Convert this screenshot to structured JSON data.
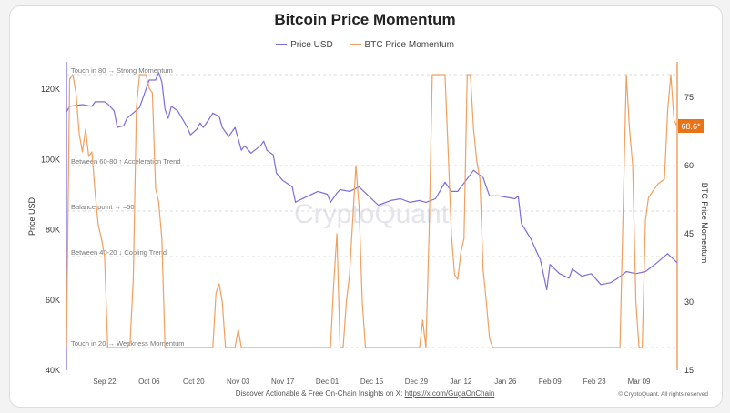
{
  "chart_data": {
    "type": "line",
    "title": "Bitcoin Price Momentum",
    "watermark": "CryptoQuant",
    "legend": {
      "placement": "top",
      "entries": [
        "Price USD",
        "BTC Price Momentum"
      ]
    },
    "x_ticks": [
      "Sep 22",
      "Oct 06",
      "Oct 20",
      "Nov 03",
      "Nov 17",
      "Dec 01",
      "Dec 15",
      "Dec 29",
      "Jan 12",
      "Jan 26",
      "Feb 09",
      "Feb 23",
      "Mar 09"
    ],
    "x_range": [
      "2024-09-10",
      "2025-03-21"
    ],
    "y_left": {
      "label": "Price USD",
      "range": [
        40000,
        128000
      ],
      "ticks": [
        40000,
        60000,
        80000,
        100000,
        120000
      ],
      "tick_labels": [
        "40K",
        "60K",
        "80K",
        "100K",
        "120K"
      ]
    },
    "y_right": {
      "label": "BTC Price Momentum",
      "range": [
        15,
        82
      ],
      "ticks": [
        15,
        30,
        45,
        60,
        75
      ],
      "tick_labels": [
        "15",
        "30",
        "45",
        "60",
        "75"
      ]
    },
    "grid": "horizontal dashed reference lines",
    "reference_lines": [
      {
        "value": 80,
        "label": "Touch in 80 → Strong Momentum"
      },
      {
        "value": 60,
        "label": "Between 60-80 ↑ Acceleration Trend"
      },
      {
        "value": 50,
        "label": "Balance point → ≈50"
      },
      {
        "value": 40,
        "label": "Between 40-20 ↓ Cooling Trend"
      },
      {
        "value": 20,
        "label": "Touch in 20 → Weakness Momentum"
      }
    ],
    "last_value_label": "68.6*",
    "colors": {
      "price": "#7b6fdc",
      "momentum": "#f0a060",
      "badge": "#e8741a"
    },
    "series": [
      {
        "name": "Price USD",
        "axis": "left",
        "points": [
          [
            "2024-09-10",
            113500
          ],
          [
            "2024-09-11",
            115100
          ],
          [
            "2024-09-15",
            115600
          ],
          [
            "2024-09-18",
            115100
          ],
          [
            "2024-09-19",
            116400
          ],
          [
            "2024-09-22",
            116400
          ],
          [
            "2024-09-23",
            115800
          ],
          [
            "2024-09-25",
            113800
          ],
          [
            "2024-09-26",
            109100
          ],
          [
            "2024-09-28",
            109600
          ],
          [
            "2024-09-29",
            111700
          ],
          [
            "2024-10-02",
            114000
          ],
          [
            "2024-10-03",
            114800
          ],
          [
            "2024-10-06",
            122600
          ],
          [
            "2024-10-08",
            122600
          ],
          [
            "2024-10-09",
            124700
          ],
          [
            "2024-10-10",
            122100
          ],
          [
            "2024-10-11",
            114300
          ],
          [
            "2024-10-12",
            111700
          ],
          [
            "2024-10-13",
            115100
          ],
          [
            "2024-10-15",
            113800
          ],
          [
            "2024-10-18",
            109100
          ],
          [
            "2024-10-19",
            107000
          ],
          [
            "2024-10-21",
            108600
          ],
          [
            "2024-10-22",
            110400
          ],
          [
            "2024-10-23",
            109100
          ],
          [
            "2024-10-25",
            111700
          ],
          [
            "2024-10-26",
            113200
          ],
          [
            "2024-10-28",
            112200
          ],
          [
            "2024-10-29",
            109100
          ],
          [
            "2024-10-31",
            106500
          ],
          [
            "2024-11-02",
            109100
          ],
          [
            "2024-11-04",
            102600
          ],
          [
            "2024-11-05",
            103900
          ],
          [
            "2024-11-07",
            101800
          ],
          [
            "2024-11-10",
            103900
          ],
          [
            "2024-11-11",
            105200
          ],
          [
            "2024-11-12",
            102600
          ],
          [
            "2024-11-14",
            101300
          ],
          [
            "2024-11-15",
            96100
          ],
          [
            "2024-11-17",
            94000
          ],
          [
            "2024-11-20",
            92200
          ],
          [
            "2024-11-21",
            87800
          ],
          [
            "2024-11-22",
            88300
          ],
          [
            "2024-11-25",
            89600
          ],
          [
            "2024-11-28",
            90900
          ],
          [
            "2024-12-01",
            90100
          ],
          [
            "2024-12-02",
            87800
          ],
          [
            "2024-12-04",
            90400
          ],
          [
            "2024-12-05",
            91400
          ],
          [
            "2024-12-08",
            90900
          ],
          [
            "2024-12-11",
            92200
          ],
          [
            "2024-12-14",
            89600
          ],
          [
            "2024-12-17",
            87000
          ],
          [
            "2024-12-21",
            88300
          ],
          [
            "2024-12-24",
            88800
          ],
          [
            "2024-12-27",
            87800
          ],
          [
            "2024-12-30",
            88300
          ],
          [
            "2025-01-01",
            87800
          ],
          [
            "2025-01-04",
            88800
          ],
          [
            "2025-01-07",
            93500
          ],
          [
            "2025-01-09",
            90900
          ],
          [
            "2025-01-11",
            90900
          ],
          [
            "2025-01-16",
            96900
          ],
          [
            "2025-01-19",
            94800
          ],
          [
            "2025-01-21",
            89600
          ],
          [
            "2025-01-24",
            89600
          ],
          [
            "2025-01-29",
            88800
          ],
          [
            "2025-01-30",
            89600
          ],
          [
            "2025-01-31",
            81800
          ],
          [
            "2025-02-03",
            77400
          ],
          [
            "2025-02-06",
            71400
          ],
          [
            "2025-02-08",
            62900
          ],
          [
            "2025-02-09",
            70100
          ],
          [
            "2025-02-12",
            67500
          ],
          [
            "2025-02-15",
            66200
          ],
          [
            "2025-02-16",
            68800
          ],
          [
            "2025-02-19",
            66800
          ],
          [
            "2025-02-22",
            67500
          ],
          [
            "2025-02-25",
            64400
          ],
          [
            "2025-02-28",
            64900
          ],
          [
            "2025-03-02",
            66000
          ],
          [
            "2025-03-05",
            68100
          ],
          [
            "2025-03-08",
            67500
          ],
          [
            "2025-03-11",
            68100
          ],
          [
            "2025-03-14",
            70100
          ],
          [
            "2025-03-18",
            73200
          ],
          [
            "2025-03-21",
            70600
          ]
        ]
      },
      {
        "name": "BTC Price Momentum",
        "axis": "right",
        "points": [
          [
            "2024-09-10",
            20
          ],
          [
            "2024-09-11",
            79
          ],
          [
            "2024-09-12",
            80
          ],
          [
            "2024-09-13",
            76
          ],
          [
            "2024-09-14",
            67
          ],
          [
            "2024-09-15",
            63
          ],
          [
            "2024-09-16",
            68
          ],
          [
            "2024-09-17",
            62
          ],
          [
            "2024-09-18",
            63
          ],
          [
            "2024-09-19",
            54
          ],
          [
            "2024-09-20",
            47
          ],
          [
            "2024-09-21",
            44
          ],
          [
            "2024-09-22",
            40
          ],
          [
            "2024-09-23",
            20
          ],
          [
            "2024-09-29",
            20
          ],
          [
            "2024-09-30",
            21
          ],
          [
            "2024-10-01",
            35
          ],
          [
            "2024-10-02",
            73
          ],
          [
            "2024-10-03",
            80
          ],
          [
            "2024-10-05",
            80
          ],
          [
            "2024-10-06",
            77
          ],
          [
            "2024-10-07",
            76
          ],
          [
            "2024-10-08",
            55
          ],
          [
            "2024-10-09",
            52
          ],
          [
            "2024-10-10",
            44
          ],
          [
            "2024-10-11",
            20
          ],
          [
            "2024-10-26",
            20
          ],
          [
            "2024-10-27",
            32
          ],
          [
            "2024-10-28",
            34
          ],
          [
            "2024-10-29",
            30
          ],
          [
            "2024-10-30",
            20
          ],
          [
            "2024-11-02",
            20
          ],
          [
            "2024-11-03",
            24
          ],
          [
            "2024-11-04",
            20
          ],
          [
            "2024-12-02",
            20
          ],
          [
            "2024-12-03",
            34
          ],
          [
            "2024-12-04",
            45
          ],
          [
            "2024-12-05",
            20
          ],
          [
            "2024-12-06",
            20
          ],
          [
            "2024-12-07",
            30
          ],
          [
            "2024-12-08",
            36
          ],
          [
            "2024-12-09",
            48
          ],
          [
            "2024-12-10",
            60
          ],
          [
            "2024-12-11",
            51
          ],
          [
            "2024-12-12",
            30
          ],
          [
            "2024-12-13",
            20
          ],
          [
            "2024-12-30",
            20
          ],
          [
            "2024-12-31",
            26
          ],
          [
            "2025-01-01",
            20
          ],
          [
            "2025-01-02",
            45
          ],
          [
            "2025-01-03",
            80
          ],
          [
            "2025-01-07",
            80
          ],
          [
            "2025-01-08",
            63
          ],
          [
            "2025-01-09",
            45
          ],
          [
            "2025-01-10",
            36
          ],
          [
            "2025-01-11",
            35
          ],
          [
            "2025-01-12",
            41
          ],
          [
            "2025-01-13",
            44
          ],
          [
            "2025-01-14",
            80
          ],
          [
            "2025-01-15",
            80
          ],
          [
            "2025-01-16",
            68
          ],
          [
            "2025-01-17",
            61
          ],
          [
            "2025-01-18",
            57
          ],
          [
            "2025-01-19",
            37
          ],
          [
            "2025-01-20",
            30
          ],
          [
            "2025-01-21",
            22
          ],
          [
            "2025-01-22",
            20
          ],
          [
            "2025-03-03",
            20
          ],
          [
            "2025-03-04",
            50
          ],
          [
            "2025-03-05",
            80
          ],
          [
            "2025-03-06",
            68
          ],
          [
            "2025-03-07",
            60
          ],
          [
            "2025-03-08",
            30
          ],
          [
            "2025-03-09",
            20
          ],
          [
            "2025-03-10",
            20
          ],
          [
            "2025-03-11",
            48
          ],
          [
            "2025-03-12",
            53
          ],
          [
            "2025-03-13",
            54
          ],
          [
            "2025-03-15",
            56
          ],
          [
            "2025-03-17",
            57
          ],
          [
            "2025-03-18",
            72
          ],
          [
            "2025-03-19",
            80
          ],
          [
            "2025-03-20",
            70
          ],
          [
            "2025-03-21",
            68.6
          ]
        ]
      }
    ]
  },
  "footer": {
    "text": "Discover Actionable & Free On-Chain Insights on X: ",
    "link": "https://x.com/GugaOnChain",
    "copyright": "© CryptoQuant. All rights reserved"
  }
}
